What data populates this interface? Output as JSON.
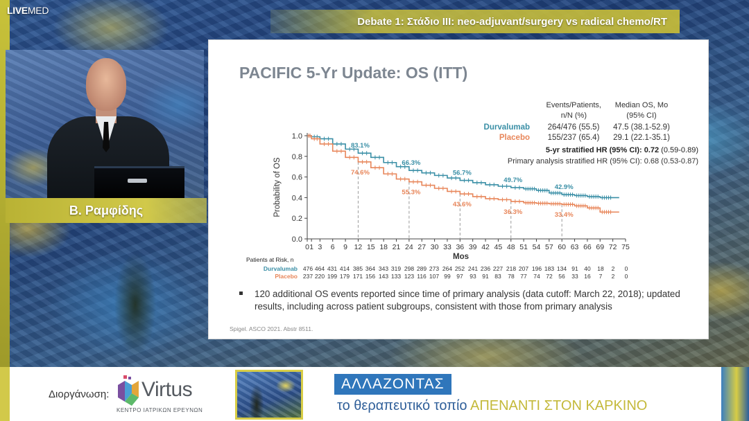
{
  "header": {
    "logo_bold": "LIVE",
    "logo_light": "MED",
    "session_title": "Debate 1: Στάδιο ΙΙΙ: neo-adjuvant/surgery vs radical chemo/RT"
  },
  "speaker": {
    "name": "Β. Ραμφίδης"
  },
  "slide": {
    "title": "PACIFIC 5-Yr Update: OS (ITT)",
    "bullet": "120 additional OS events reported since time of primary analysis (data cutoff: March 22, 2018); updated results, including across patient subgroups, consistent with those from primary analysis",
    "citation": "Spigel. ASCO 2021. Abstr 8511."
  },
  "chart_data": {
    "type": "line",
    "xlabel": "Mos",
    "ylabel": "Probability of OS",
    "xlim": [
      0,
      75
    ],
    "ylim": [
      0,
      1.0
    ],
    "x_ticks": [
      0,
      1,
      3,
      6,
      9,
      12,
      15,
      18,
      21,
      24,
      27,
      30,
      33,
      36,
      39,
      42,
      45,
      48,
      51,
      54,
      57,
      60,
      63,
      66,
      69,
      72,
      75
    ],
    "x_tick_labels": [
      "0",
      "1",
      "3",
      "6",
      "9",
      "12",
      "15",
      "18",
      "21",
      "24",
      "27",
      "30",
      "33",
      "36",
      "39",
      "42",
      "45",
      "48",
      "51",
      "54",
      "57",
      "60",
      "63",
      "66",
      "69",
      "72",
      "75"
    ],
    "y_ticks": [
      0,
      0.2,
      0.4,
      0.6,
      0.8,
      1.0
    ],
    "y_tick_labels": [
      "0.0",
      "0.2",
      "0.4",
      "0.6",
      "0.8",
      "1.0"
    ],
    "colors": {
      "durvalumab": "#3a8fa6",
      "placebo": "#e8865a"
    },
    "series": [
      {
        "name": "Durvalumab",
        "x": [
          0,
          1,
          3,
          6,
          9,
          12,
          15,
          18,
          21,
          24,
          27,
          30,
          33,
          36,
          39,
          42,
          45,
          48,
          51,
          54,
          57,
          60,
          63,
          66,
          69,
          72
        ],
        "y": [
          1.0,
          0.99,
          0.97,
          0.92,
          0.87,
          0.831,
          0.79,
          0.74,
          0.7,
          0.663,
          0.64,
          0.615,
          0.59,
          0.567,
          0.545,
          0.525,
          0.51,
          0.497,
          0.485,
          0.47,
          0.445,
          0.429,
          0.42,
          0.41,
          0.4,
          0.4
        ]
      },
      {
        "name": "Placebo",
        "x": [
          0,
          1,
          3,
          6,
          9,
          12,
          15,
          18,
          21,
          24,
          27,
          30,
          33,
          36,
          39,
          42,
          45,
          48,
          51,
          54,
          57,
          60,
          63,
          66,
          69,
          72
        ],
        "y": [
          1.0,
          0.97,
          0.92,
          0.85,
          0.79,
          0.746,
          0.69,
          0.63,
          0.58,
          0.553,
          0.52,
          0.49,
          0.46,
          0.436,
          0.41,
          0.39,
          0.38,
          0.363,
          0.35,
          0.345,
          0.34,
          0.334,
          0.32,
          0.3,
          0.26,
          0.26
        ]
      }
    ],
    "annotations": [
      {
        "series": "Durvalumab",
        "x": 12,
        "y": 0.831,
        "label": "83.1%"
      },
      {
        "series": "Durvalumab",
        "x": 24,
        "y": 0.663,
        "label": "66.3%"
      },
      {
        "series": "Durvalumab",
        "x": 36,
        "y": 0.567,
        "label": "56.7%"
      },
      {
        "series": "Durvalumab",
        "x": 48,
        "y": 0.497,
        "label": "49.7%"
      },
      {
        "series": "Durvalumab",
        "x": 60,
        "y": 0.429,
        "label": "42.9%"
      },
      {
        "series": "Placebo",
        "x": 12,
        "y": 0.746,
        "label": "74.6%"
      },
      {
        "series": "Placebo",
        "x": 24,
        "y": 0.553,
        "label": "55.3%"
      },
      {
        "series": "Placebo",
        "x": 36,
        "y": 0.436,
        "label": "43.6%"
      },
      {
        "series": "Placebo",
        "x": 48,
        "y": 0.363,
        "label": "36.3%"
      },
      {
        "series": "Placebo",
        "x": 60,
        "y": 0.334,
        "label": "33.4%"
      }
    ],
    "table": {
      "col1": [
        "Events/Patients,",
        "n/N (%)"
      ],
      "col2": [
        "Median OS, Mo",
        "(95% CI)"
      ],
      "rows": [
        {
          "name": "Durvalumab",
          "events": "264/476 (55.5)",
          "median": "47.5 (38.1-52.9)"
        },
        {
          "name": "Placebo",
          "events": "155/237 (65.4)",
          "median": "29.1 (22.1-35.1)"
        }
      ]
    },
    "hr_lines": [
      {
        "label": "5-yr stratified HR (95% CI): ",
        "value": "0.72",
        "ci": " (0.59-0.89)"
      },
      {
        "label": "Primary analysis stratified HR (95% CI): 0.68 (0.53-0.87)"
      }
    ],
    "risk_table": {
      "title": "Patients at Risk, n",
      "rows": [
        {
          "name": "Durvalumab",
          "values": [
            "476",
            "464",
            "431",
            "414",
            "385",
            "364",
            "343",
            "319",
            "298",
            "289",
            "273",
            "264",
            "252",
            "241",
            "236",
            "227",
            "218",
            "207",
            "196",
            "183",
            "134",
            "91",
            "40",
            "18",
            "2",
            "0"
          ]
        },
        {
          "name": "Placebo",
          "values": [
            "237",
            "220",
            "199",
            "179",
            "171",
            "156",
            "143",
            "133",
            "123",
            "116",
            "107",
            "99",
            "97",
            "93",
            "91",
            "83",
            "78",
            "77",
            "74",
            "72",
            "56",
            "33",
            "16",
            "7",
            "2",
            "0"
          ]
        }
      ]
    }
  },
  "footer": {
    "org_label": "Διοργάνωση:",
    "org_name": "Virtus",
    "org_subtitle": "ΚΕΝΤΡΟ ΙΑΤΡΙΚΩΝ ΕΡΕΥΝΩΝ",
    "campaign_top": "ΑΛΛΑΖΟΝΤΑΣ",
    "campaign_bottom_a": "το θεραπευτικό τοπίο ",
    "campaign_bottom_b": "ΑΠΕΝΑΝΤΙ ΣΤΟΝ ΚΑΡΚΙΝΟ"
  }
}
